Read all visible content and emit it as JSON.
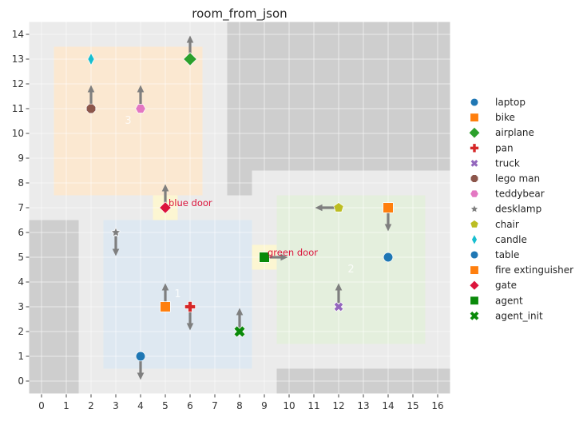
{
  "title": "room_from_json",
  "style": {
    "figure_bg": "#ffffff",
    "axes_bg": "#ebebeb",
    "wall_color": "#cecece",
    "door_fill": "#fcf6d2",
    "grid_color": "#ffffff",
    "arrow_color": "#7f7f7f",
    "door_label_color": "#dc143c",
    "room_label_color": "#ffffff",
    "title_color": "#262626",
    "tick_label_color": "#333333",
    "tick_mark_color": "#444444",
    "legend_text_color": "#262626"
  },
  "chart_data": {
    "type": "scatter",
    "title": "room_from_json",
    "xlabel": "",
    "ylabel": "",
    "xlim": [
      -0.5,
      16.5
    ],
    "ylim": [
      -0.5,
      14.5
    ],
    "xticks": [
      0,
      1,
      2,
      3,
      4,
      5,
      6,
      7,
      8,
      9,
      10,
      11,
      12,
      13,
      14,
      15,
      16
    ],
    "yticks": [
      0,
      1,
      2,
      3,
      4,
      5,
      6,
      7,
      8,
      9,
      10,
      11,
      12,
      13,
      14
    ],
    "grid": true,
    "legend_position": "right-outside",
    "walls": [
      {
        "x0": -0.5,
        "y0": -0.5,
        "x1": 1.5,
        "y1": 6.5
      },
      {
        "x0": 7.5,
        "y0": 8.5,
        "x1": 16.5,
        "y1": 14.5
      },
      {
        "x0": 7.5,
        "y0": 7.5,
        "x1": 8.5,
        "y1": 8.5
      },
      {
        "x0": 9.5,
        "y0": -0.5,
        "x1": 16.5,
        "y1": 0.5
      }
    ],
    "rooms": [
      {
        "label": "1",
        "fill": "#dee8f1",
        "x0": 2.5,
        "y0": 0.5,
        "x1": 8.5,
        "y1": 6.5,
        "label_x": 5.5,
        "label_y": 3.5
      },
      {
        "label": "2",
        "fill": "#e4efdd",
        "x0": 9.5,
        "y0": 1.5,
        "x1": 15.5,
        "y1": 7.5,
        "label_x": 12.5,
        "label_y": 4.5
      },
      {
        "label": "3",
        "fill": "#fbe8d1",
        "x0": 0.5,
        "y0": 7.5,
        "x1": 6.5,
        "y1": 13.5,
        "label_x": 3.5,
        "label_y": 10.5
      }
    ],
    "doors": [
      {
        "label": "blue door",
        "x": 5,
        "y": 7
      },
      {
        "label": "green door",
        "x": 9,
        "y": 5
      }
    ],
    "objects": [
      {
        "name": "laptop",
        "marker": "circle",
        "color": "#1f77b4",
        "x": 14,
        "y": 5,
        "arrow": null
      },
      {
        "name": "bike",
        "marker": "square",
        "color": "#ff7f0e",
        "x": 5,
        "y": 3,
        "arrow": "up"
      },
      {
        "name": "airplane",
        "marker": "diamond-lg",
        "color": "#2ca02c",
        "x": 6,
        "y": 13,
        "arrow": "up"
      },
      {
        "name": "pan",
        "marker": "plus",
        "color": "#d62728",
        "x": 6,
        "y": 3,
        "arrow": "down"
      },
      {
        "name": "truck",
        "marker": "x",
        "color": "#9467bd",
        "x": 12,
        "y": 3,
        "arrow": "up"
      },
      {
        "name": "lego man",
        "marker": "octagon",
        "color": "#8c564b",
        "x": 2,
        "y": 11,
        "arrow": "up"
      },
      {
        "name": "teddybear",
        "marker": "hexagon",
        "color": "#e377c2",
        "x": 4,
        "y": 11,
        "arrow": "up"
      },
      {
        "name": "desklamp",
        "marker": "star",
        "color": "#7f7f7f",
        "x": 3,
        "y": 6,
        "arrow": "down"
      },
      {
        "name": "chair",
        "marker": "pentagon",
        "color": "#bcbd22",
        "x": 12,
        "y": 7,
        "arrow": "left"
      },
      {
        "name": "candle",
        "marker": "thin-diamond",
        "color": "#17becf",
        "x": 2,
        "y": 13,
        "arrow": null
      },
      {
        "name": "table",
        "marker": "circle",
        "color": "#1f77b4",
        "x": 4,
        "y": 1,
        "arrow": "down"
      },
      {
        "name": "fire extinguisher",
        "marker": "square",
        "color": "#ff7f0e",
        "x": 14,
        "y": 7,
        "arrow": "down"
      },
      {
        "name": "gate",
        "marker": "diamond",
        "color": "#dc143c",
        "x": 5,
        "y": 7,
        "arrow": "up"
      },
      {
        "name": "agent",
        "marker": "square",
        "color": "#0a8a0a",
        "x": 9,
        "y": 5,
        "arrow": "right"
      },
      {
        "name": "agent_init",
        "marker": "X",
        "color": "#0a8a0a",
        "x": 8,
        "y": 2,
        "arrow": "up"
      }
    ],
    "legend": [
      {
        "label": "laptop",
        "marker": "circle",
        "color": "#1f77b4"
      },
      {
        "label": "bike",
        "marker": "square",
        "color": "#ff7f0e"
      },
      {
        "label": "airplane",
        "marker": "diamond-lg",
        "color": "#2ca02c"
      },
      {
        "label": "pan",
        "marker": "plus",
        "color": "#d62728"
      },
      {
        "label": "truck",
        "marker": "x",
        "color": "#9467bd"
      },
      {
        "label": "lego man",
        "marker": "octagon",
        "color": "#8c564b"
      },
      {
        "label": "teddybear",
        "marker": "hexagon",
        "color": "#e377c2"
      },
      {
        "label": "desklamp",
        "marker": "star",
        "color": "#7f7f7f"
      },
      {
        "label": "chair",
        "marker": "pentagon",
        "color": "#bcbd22"
      },
      {
        "label": "candle",
        "marker": "thin-diamond",
        "color": "#17becf"
      },
      {
        "label": "table",
        "marker": "circle",
        "color": "#1f77b4"
      },
      {
        "label": "fire extinguisher",
        "marker": "square",
        "color": "#ff7f0e"
      },
      {
        "label": "gate",
        "marker": "diamond",
        "color": "#dc143c"
      },
      {
        "label": "agent",
        "marker": "square",
        "color": "#0a8a0a"
      },
      {
        "label": "agent_init",
        "marker": "X",
        "color": "#0a8a0a"
      }
    ]
  }
}
